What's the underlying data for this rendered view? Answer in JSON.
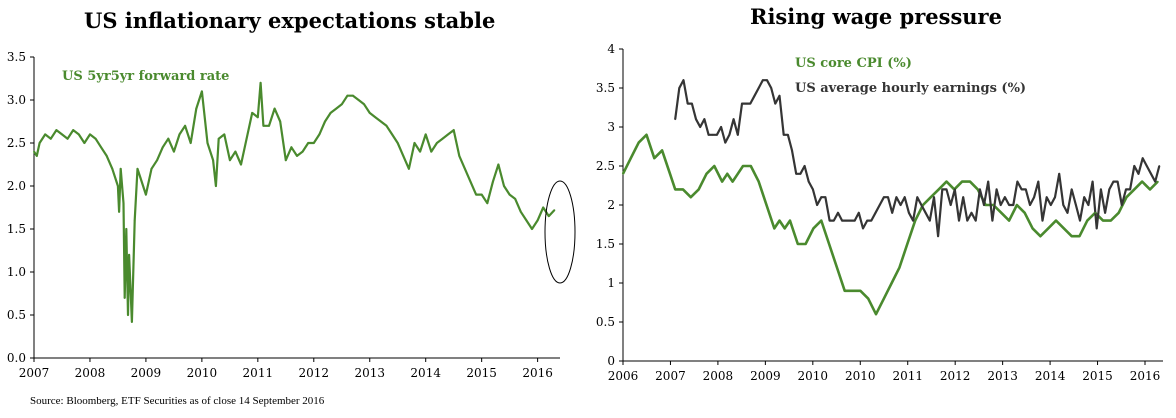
{
  "colors": {
    "green": "#4a8a2e",
    "dark": "#353535",
    "axis": "#000000"
  },
  "chart_data": [
    {
      "type": "line",
      "title": "US inflationary expectations stable",
      "xlabel": "",
      "ylabel": "",
      "xlim": [
        2007.0,
        2016.4
      ],
      "ylim": [
        0.0,
        3.5
      ],
      "yticks": [
        "0.0",
        "0.5",
        "1.0",
        "1.5",
        "2.0",
        "2.5",
        "3.0",
        "3.5"
      ],
      "xticks": [
        "2007",
        "2008",
        "2009",
        "2010",
        "2011",
        "2012",
        "2013",
        "2014",
        "2015",
        "2016"
      ],
      "annotation": "ellipse around latest readings (2016)",
      "series": [
        {
          "name": "US 5yr5yr forward rate",
          "color": "#4a8a2e",
          "x": [
            2007.0,
            2007.05,
            2007.1,
            2007.2,
            2007.3,
            2007.4,
            2007.5,
            2007.6,
            2007.7,
            2007.8,
            2007.9,
            2008.0,
            2008.1,
            2008.2,
            2008.3,
            2008.4,
            2008.5,
            2008.52,
            2008.55,
            2008.6,
            2008.62,
            2008.65,
            2008.68,
            2008.7,
            2008.75,
            2008.8,
            2008.85,
            2008.9,
            2009.0,
            2009.1,
            2009.2,
            2009.3,
            2009.4,
            2009.5,
            2009.6,
            2009.7,
            2009.8,
            2009.9,
            2010.0,
            2010.1,
            2010.2,
            2010.25,
            2010.3,
            2010.4,
            2010.5,
            2010.6,
            2010.7,
            2010.8,
            2010.9,
            2011.0,
            2011.05,
            2011.1,
            2011.2,
            2011.3,
            2011.4,
            2011.5,
            2011.6,
            2011.7,
            2011.8,
            2011.9,
            2012.0,
            2012.1,
            2012.2,
            2012.3,
            2012.4,
            2012.5,
            2012.6,
            2012.7,
            2012.8,
            2012.9,
            2013.0,
            2013.1,
            2013.2,
            2013.3,
            2013.4,
            2013.5,
            2013.6,
            2013.7,
            2013.8,
            2013.9,
            2014.0,
            2014.1,
            2014.2,
            2014.3,
            2014.4,
            2014.5,
            2014.6,
            2014.7,
            2014.8,
            2014.9,
            2015.0,
            2015.1,
            2015.2,
            2015.3,
            2015.4,
            2015.5,
            2015.6,
            2015.7,
            2015.8,
            2015.9,
            2016.0,
            2016.1,
            2016.2,
            2016.3
          ],
          "values": [
            2.4,
            2.35,
            2.5,
            2.6,
            2.55,
            2.65,
            2.6,
            2.55,
            2.65,
            2.6,
            2.5,
            2.6,
            2.55,
            2.45,
            2.35,
            2.2,
            2.0,
            1.7,
            2.2,
            1.8,
            0.7,
            1.5,
            0.5,
            1.2,
            0.42,
            1.6,
            2.2,
            2.1,
            1.9,
            2.2,
            2.3,
            2.45,
            2.55,
            2.4,
            2.6,
            2.7,
            2.5,
            2.9,
            3.1,
            2.5,
            2.3,
            2.0,
            2.55,
            2.6,
            2.3,
            2.4,
            2.25,
            2.55,
            2.85,
            2.8,
            3.2,
            2.7,
            2.7,
            2.9,
            2.75,
            2.3,
            2.45,
            2.35,
            2.4,
            2.5,
            2.5,
            2.6,
            2.75,
            2.85,
            2.9,
            2.95,
            3.05,
            3.05,
            3.0,
            2.95,
            2.85,
            2.8,
            2.75,
            2.7,
            2.6,
            2.5,
            2.35,
            2.2,
            2.5,
            2.4,
            2.6,
            2.4,
            2.5,
            2.55,
            2.6,
            2.65,
            2.35,
            2.2,
            2.05,
            1.9,
            1.9,
            1.8,
            2.05,
            2.25,
            2.0,
            1.9,
            1.85,
            1.7,
            1.6,
            1.5,
            1.6,
            1.75,
            1.65,
            1.72
          ]
        }
      ]
    },
    {
      "type": "line",
      "title": "Rising wage pressure",
      "xlabel": "",
      "ylabel": "",
      "xlim": [
        2006.0,
        2016.35
      ],
      "ylim": [
        0,
        4
      ],
      "yticks": [
        "0",
        "0.5",
        "1",
        "1.5",
        "2",
        "2.5",
        "3",
        "3.5",
        "4"
      ],
      "xticks": [
        "2006",
        "2007",
        "2008",
        "2009",
        "2010",
        "2010",
        "2011",
        "2012",
        "2013",
        "2014",
        "2015",
        "2016"
      ],
      "series": [
        {
          "name": "US core CPI (%)",
          "color": "#4a8a2e",
          "x": [
            2006.0,
            2006.15,
            2006.3,
            2006.45,
            2006.6,
            2006.75,
            2006.9,
            2007.0,
            2007.15,
            2007.3,
            2007.45,
            2007.6,
            2007.75,
            2007.9,
            2008.0,
            2008.1,
            2008.2,
            2008.3,
            2008.45,
            2008.6,
            2008.75,
            2008.9,
            2009.0,
            2009.1,
            2009.2,
            2009.35,
            2009.5,
            2009.65,
            2009.8,
            2009.95,
            2010.1,
            2010.25,
            2010.4,
            2010.55,
            2010.7,
            2010.85,
            2011.0,
            2011.15,
            2011.3,
            2011.45,
            2011.6,
            2011.75,
            2011.9,
            2012.05,
            2012.2,
            2012.35,
            2012.5,
            2012.65,
            2012.8,
            2012.95,
            2013.1,
            2013.25,
            2013.4,
            2013.55,
            2013.7,
            2013.85,
            2014.0,
            2014.15,
            2014.3,
            2014.45,
            2014.6,
            2014.75,
            2014.9,
            2015.05,
            2015.2,
            2015.35,
            2015.5,
            2015.65,
            2015.8,
            2015.95,
            2016.1,
            2016.25
          ],
          "values": [
            2.4,
            2.6,
            2.8,
            2.9,
            2.6,
            2.7,
            2.4,
            2.2,
            2.2,
            2.1,
            2.2,
            2.4,
            2.5,
            2.3,
            2.4,
            2.3,
            2.4,
            2.5,
            2.5,
            2.3,
            2.0,
            1.7,
            1.8,
            1.7,
            1.8,
            1.5,
            1.5,
            1.7,
            1.8,
            1.5,
            1.2,
            0.9,
            0.9,
            0.9,
            0.8,
            0.6,
            0.8,
            1.0,
            1.2,
            1.5,
            1.8,
            2.0,
            2.1,
            2.2,
            2.3,
            2.2,
            2.3,
            2.3,
            2.2,
            2.0,
            2.0,
            1.9,
            1.8,
            2.0,
            1.9,
            1.7,
            1.6,
            1.7,
            1.8,
            1.7,
            1.6,
            1.6,
            1.8,
            1.9,
            1.8,
            1.8,
            1.9,
            2.1,
            2.2,
            2.3,
            2.2,
            2.3
          ]
        },
        {
          "name": "US average hourly earnings (%)",
          "color": "#353535",
          "x": [
            2007.0,
            2007.08,
            2007.16,
            2007.24,
            2007.32,
            2007.4,
            2007.48,
            2007.56,
            2007.64,
            2007.72,
            2007.8,
            2007.88,
            2007.96,
            2008.04,
            2008.12,
            2008.2,
            2008.28,
            2008.36,
            2008.44,
            2008.52,
            2008.6,
            2008.68,
            2008.76,
            2008.84,
            2008.92,
            2009.0,
            2009.08,
            2009.16,
            2009.24,
            2009.32,
            2009.4,
            2009.48,
            2009.56,
            2009.64,
            2009.72,
            2009.8,
            2009.88,
            2009.96,
            2010.04,
            2010.12,
            2010.2,
            2010.28,
            2010.36,
            2010.44,
            2010.52,
            2010.6,
            2010.68,
            2010.76,
            2010.84,
            2010.92,
            2011.0,
            2011.08,
            2011.16,
            2011.24,
            2011.32,
            2011.4,
            2011.48,
            2011.56,
            2011.64,
            2011.72,
            2011.8,
            2011.88,
            2011.96,
            2012.04,
            2012.12,
            2012.2,
            2012.28,
            2012.36,
            2012.44,
            2012.52,
            2012.6,
            2012.68,
            2012.76,
            2012.84,
            2012.92,
            2013.0,
            2013.08,
            2013.16,
            2013.24,
            2013.32,
            2013.4,
            2013.48,
            2013.56,
            2013.64,
            2013.72,
            2013.8,
            2013.88,
            2013.96,
            2014.04,
            2014.12,
            2014.2,
            2014.28,
            2014.36,
            2014.44,
            2014.52,
            2014.6,
            2014.68,
            2014.76,
            2014.84,
            2014.92,
            2015.0,
            2015.08,
            2015.16,
            2015.24,
            2015.32,
            2015.4,
            2015.48,
            2015.56,
            2015.64,
            2015.72,
            2015.8,
            2015.88,
            2015.96,
            2016.04,
            2016.12,
            2016.2,
            2016.28
          ],
          "values": [
            3.1,
            3.5,
            3.6,
            3.3,
            3.3,
            3.1,
            3.0,
            3.1,
            2.9,
            2.9,
            2.9,
            3.0,
            2.8,
            2.9,
            3.1,
            2.9,
            3.3,
            3.3,
            3.3,
            3.4,
            3.5,
            3.6,
            3.6,
            3.5,
            3.3,
            3.4,
            2.9,
            2.9,
            2.7,
            2.4,
            2.4,
            2.5,
            2.3,
            2.2,
            2.0,
            2.1,
            2.1,
            1.8,
            1.8,
            1.9,
            1.8,
            1.8,
            1.8,
            1.8,
            1.9,
            1.7,
            1.8,
            1.8,
            1.9,
            2.0,
            2.1,
            2.1,
            1.9,
            2.1,
            2.0,
            2.1,
            1.9,
            1.8,
            2.1,
            2.0,
            1.9,
            1.8,
            2.1,
            1.6,
            2.2,
            2.2,
            2.0,
            2.2,
            1.8,
            2.1,
            1.8,
            1.9,
            1.8,
            2.2,
            2.0,
            2.3,
            1.8,
            2.2,
            2.0,
            2.1,
            2.0,
            2.0,
            2.3,
            2.2,
            2.2,
            2.0,
            2.1,
            2.3,
            1.8,
            2.1,
            2.0,
            2.1,
            2.4,
            2.0,
            1.9,
            2.2,
            2.0,
            1.8,
            2.1,
            2.0,
            2.3,
            1.7,
            2.2,
            1.9,
            2.2,
            2.3,
            2.3,
            2.0,
            2.2,
            2.2,
            2.5,
            2.4,
            2.6,
            2.5,
            2.4,
            2.3,
            2.5
          ]
        }
      ]
    }
  ],
  "source": "Source: Bloomberg, ETF Securities as of close 14 September 2016"
}
